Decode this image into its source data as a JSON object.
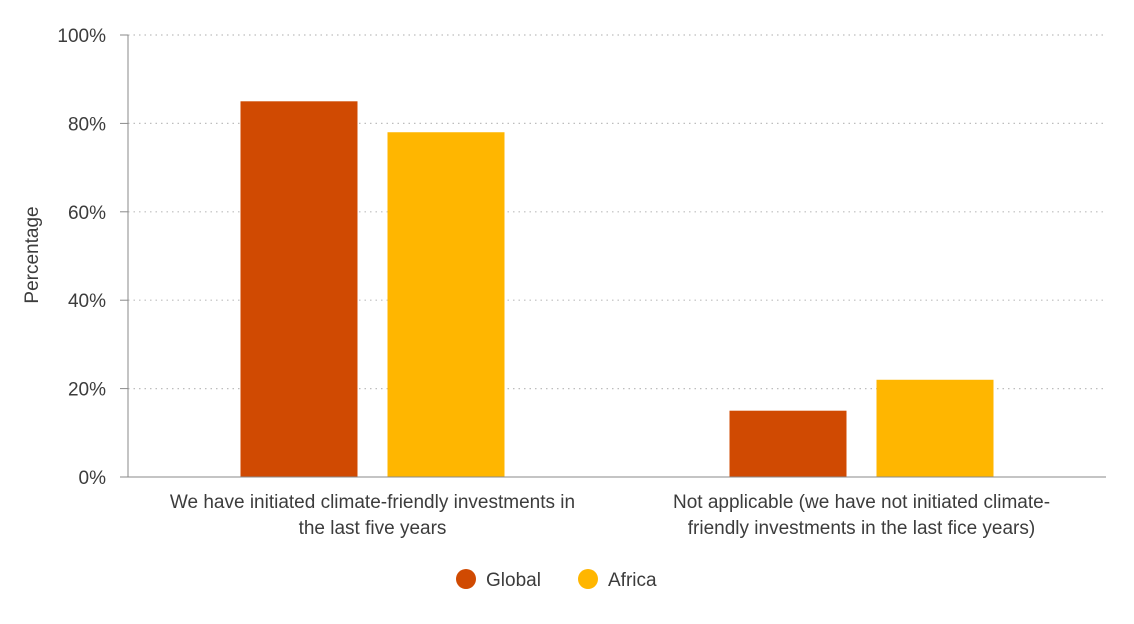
{
  "chart_data": {
    "type": "bar",
    "title": "",
    "xlabel": "",
    "ylabel": "Percentage",
    "ylim": [
      0,
      100
    ],
    "yticks": [
      "0%",
      "20%",
      "40%",
      "60%",
      "80%",
      "100%"
    ],
    "ytick_values": [
      0,
      20,
      40,
      60,
      80,
      100
    ],
    "categories": [
      [
        "We have initiated climate-friendly investments in",
        "the last five years"
      ],
      [
        "Not applicable (we have not initiated climate-",
        "friendly investments in the last fice years)"
      ]
    ],
    "series": [
      {
        "name": "Global",
        "values": [
          85,
          15
        ],
        "color": "#D04A02"
      },
      {
        "name": "Africa",
        "values": [
          78,
          22
        ],
        "color": "#FFB600"
      }
    ],
    "grid": true,
    "legend_position": "bottom-center"
  }
}
